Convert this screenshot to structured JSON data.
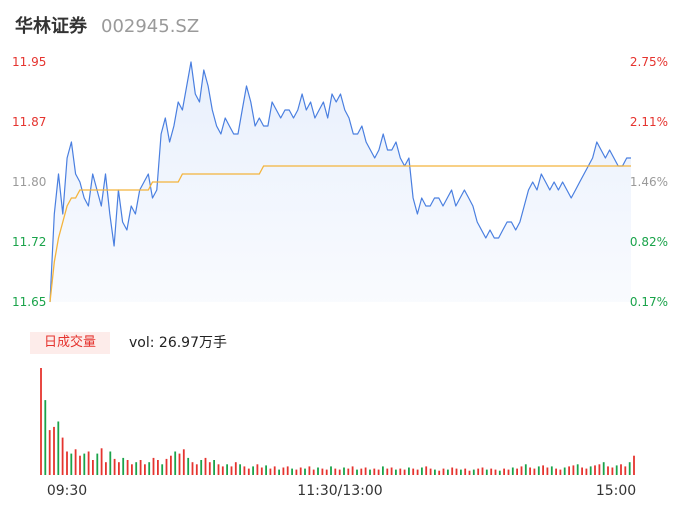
{
  "header": {
    "name": "华林证券",
    "code": "002945.SZ"
  },
  "volume": {
    "tab_label": "日成交量",
    "readout": "vol: 26.97万手"
  },
  "colors": {
    "price_line": "#4a7fe0",
    "avg_line": "#f4b43c",
    "area_top": "#e6eefc",
    "up": "#e5342f",
    "down": "#1aa34a",
    "neutral": "#9a9a9a"
  },
  "chart_data": {
    "type": "line",
    "title": "",
    "y_ticks": [
      "11.95",
      "11.87",
      "11.80",
      "11.72",
      "11.65"
    ],
    "y_ticks_pct": [
      "2.75%",
      "2.11%",
      "1.46%",
      "0.82%",
      "0.17%"
    ],
    "ylim": [
      11.65,
      11.95
    ],
    "x_labels": [
      "09:30",
      "11:30/13:00",
      "15:00"
    ],
    "series": [
      {
        "values": [
          11.65,
          11.76,
          11.81,
          11.76,
          11.83,
          11.85,
          11.81,
          11.8,
          11.78,
          11.77,
          11.81,
          11.79,
          11.77,
          11.81,
          11.76,
          11.72,
          11.79,
          11.75,
          11.74,
          11.77,
          11.76,
          11.79,
          11.8,
          11.81,
          11.78,
          11.79,
          11.86,
          11.88,
          11.85,
          11.87,
          11.9,
          11.89,
          11.92,
          11.95,
          11.91,
          11.9,
          11.94,
          11.92,
          11.89,
          11.87,
          11.86,
          11.88,
          11.87,
          11.86,
          11.86,
          11.89,
          11.92,
          11.9,
          11.87,
          11.88,
          11.87,
          11.87,
          11.9,
          11.89,
          11.88,
          11.89,
          11.89,
          11.88,
          11.89,
          11.91,
          11.89,
          11.9,
          11.88,
          11.89,
          11.9,
          11.88,
          11.91,
          11.9,
          11.91,
          11.89,
          11.88,
          11.86,
          11.86,
          11.87,
          11.85,
          11.84,
          11.83,
          11.84,
          11.86,
          11.84,
          11.84,
          11.85,
          11.83,
          11.82,
          11.83,
          11.78,
          11.76,
          11.78,
          11.77,
          11.77,
          11.78,
          11.78,
          11.77,
          11.78,
          11.79,
          11.77,
          11.78,
          11.79,
          11.78,
          11.77,
          11.75,
          11.74,
          11.73,
          11.74,
          11.73,
          11.73,
          11.74,
          11.75,
          11.75,
          11.74,
          11.75,
          11.77,
          11.79,
          11.8,
          11.79,
          11.81,
          11.8,
          11.79,
          11.8,
          11.79,
          11.8,
          11.79,
          11.78,
          11.79,
          11.8,
          11.81,
          11.82,
          11.83,
          11.85,
          11.84,
          11.83,
          11.84,
          11.83,
          11.82,
          11.82,
          11.83,
          11.83
        ]
      },
      {
        "values": [
          11.65,
          11.7,
          11.73,
          11.75,
          11.77,
          11.78,
          11.78,
          11.79,
          11.79,
          11.79,
          11.79,
          11.79,
          11.79,
          11.79,
          11.79,
          11.79,
          11.79,
          11.79,
          11.79,
          11.79,
          11.79,
          11.79,
          11.79,
          11.79,
          11.8,
          11.8,
          11.8,
          11.8,
          11.8,
          11.8,
          11.8,
          11.81,
          11.81,
          11.81,
          11.81,
          11.81,
          11.81,
          11.81,
          11.81,
          11.81,
          11.81,
          11.81,
          11.81,
          11.81,
          11.81,
          11.81,
          11.81,
          11.81,
          11.81,
          11.81,
          11.82,
          11.82,
          11.82,
          11.82,
          11.82,
          11.82,
          11.82,
          11.82,
          11.82,
          11.82,
          11.82,
          11.82,
          11.82,
          11.82,
          11.82,
          11.82,
          11.82,
          11.82,
          11.82,
          11.82,
          11.82,
          11.82,
          11.82,
          11.82,
          11.82,
          11.82,
          11.82,
          11.82,
          11.82,
          11.82,
          11.82,
          11.82,
          11.82,
          11.82,
          11.82,
          11.82,
          11.82,
          11.82,
          11.82,
          11.82,
          11.82,
          11.82,
          11.82,
          11.82,
          11.82,
          11.82,
          11.82,
          11.82,
          11.82,
          11.82,
          11.82,
          11.82,
          11.82,
          11.82,
          11.82,
          11.82,
          11.82,
          11.82,
          11.82,
          11.82,
          11.82,
          11.82,
          11.82,
          11.82,
          11.82,
          11.82,
          11.82,
          11.82,
          11.82,
          11.82,
          11.82,
          11.82,
          11.82,
          11.82,
          11.82,
          11.82,
          11.82,
          11.82,
          11.82,
          11.82,
          11.82,
          11.82,
          11.82,
          11.82,
          11.82,
          11.82,
          11.82
        ]
      }
    ],
    "volume_bars": [
      100,
      70,
      42,
      45,
      50,
      35,
      22,
      20,
      24,
      18,
      20,
      22,
      14,
      20,
      25,
      12,
      22,
      15,
      12,
      16,
      14,
      10,
      12,
      14,
      10,
      12,
      16,
      14,
      10,
      15,
      18,
      22,
      20,
      24,
      16,
      12,
      10,
      14,
      16,
      12,
      14,
      10,
      8,
      10,
      8,
      12,
      10,
      8,
      6,
      8,
      10,
      7,
      9,
      6,
      8,
      5,
      7,
      8,
      6,
      5,
      7,
      6,
      8,
      5,
      7,
      6,
      5,
      8,
      6,
      5,
      7,
      6,
      8,
      5,
      6,
      7,
      5,
      6,
      5,
      8,
      6,
      7,
      5,
      6,
      5,
      7,
      6,
      5,
      7,
      8,
      6,
      5,
      4,
      6,
      5,
      7,
      6,
      5,
      6,
      4,
      5,
      6,
      7,
      5,
      6,
      5,
      4,
      6,
      5,
      7,
      6,
      8,
      10,
      7,
      6,
      8,
      9,
      7,
      8,
      6,
      5,
      7,
      8,
      9,
      10,
      7,
      6,
      8,
      9,
      10,
      12,
      8,
      7,
      9,
      10,
      8,
      12,
      18
    ]
  }
}
